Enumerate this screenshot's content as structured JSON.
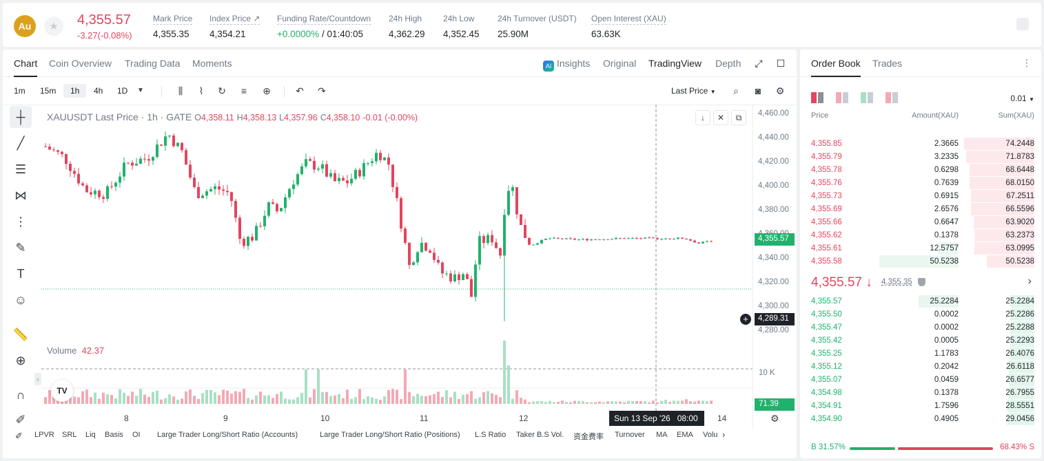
{
  "header": {
    "coin_icon": "Au",
    "last_price": "4,355.57",
    "change": "-3.27(-0.08%)",
    "stats": [
      {
        "label": "Mark Price",
        "value": "4,355.35"
      },
      {
        "label": "Index Price ↗",
        "value": "4,354.21"
      },
      {
        "label": "Funding Rate/Countdown",
        "value_green": "+0.0000%",
        "value": " / 01:40:05"
      },
      {
        "label": "24h High",
        "value": "4,362.29"
      },
      {
        "label": "24h Low",
        "value": "4,352.45"
      },
      {
        "label": "24h Turnover (USDT)",
        "value": "25.90M"
      },
      {
        "label": "Open Interest (XAU)",
        "value": "63.63K"
      }
    ]
  },
  "chart_tabs": [
    "Chart",
    "Coin Overview",
    "Trading Data",
    "Moments"
  ],
  "chart_right_tabs": {
    "insights": "Insights",
    "original": "Original",
    "tradingview": "TradingView",
    "depth": "Depth"
  },
  "timeframes": [
    "1m",
    "15m",
    "1h",
    "4h",
    "1D"
  ],
  "selected_timeframe": "1h",
  "price_type": "Last Price",
  "ohlc": {
    "symbol": "XAUUSDT Last Price · 1h · GATE",
    "o": "O",
    "o_val": "4,358.11",
    "h": "H",
    "h_val": "4,358.13",
    "l": "L",
    "l_val": "4,357.96",
    "c": "C",
    "c_val": "4,358.10",
    "chg": "-0.01 (-0.00%)"
  },
  "volume": {
    "label": "Volume",
    "value": "42.37",
    "axis_label": "10 K",
    "last": "71.39"
  },
  "price_axis": [
    "4,460.00",
    "4,440.00",
    "4,420.00",
    "4,400.00",
    "4,380.00",
    "4,360.00",
    "4,340.00",
    "4,320.00",
    "4,300.00",
    "4,280.00"
  ],
  "current_price_tag": "4,355.57",
  "crosshair_price_tag": "4,289.31",
  "time_axis": [
    "8",
    "9",
    "10",
    "11",
    "12",
    "14"
  ],
  "crosshair_time": "Sun 13 Sep '26   08:00",
  "bottom_indicators": [
    "LPVR",
    "SRL",
    "Liq",
    "Basis",
    "OI",
    "Large Trader Long/Short Ratio (Accounts)",
    "Large Trader Long/Short Ratio (Positions)",
    "L.S Ratio",
    "Taker B.S Vol.",
    "资金费率",
    "Turnover",
    "MA",
    "EMA",
    "Volu"
  ],
  "orderbook": {
    "tabs": [
      "Order Book",
      "Trades"
    ],
    "precision": "0.01",
    "headers": {
      "price": "Price",
      "amount": "Amount(XAU)",
      "sum": "Sum(XAU)"
    },
    "asks": [
      {
        "price": "4,355.85",
        "amount": "2.3665",
        "sum": "74.2448"
      },
      {
        "price": "4,355.79",
        "amount": "3.2335",
        "sum": "71.8783"
      },
      {
        "price": "4,355.78",
        "amount": "0.6298",
        "sum": "68.6448"
      },
      {
        "price": "4,355.76",
        "amount": "0.7639",
        "sum": "68.0150"
      },
      {
        "price": "4,355.73",
        "amount": "0.6915",
        "sum": "67.2511"
      },
      {
        "price": "4,355.69",
        "amount": "2.6576",
        "sum": "66.5596"
      },
      {
        "price": "4,355.66",
        "amount": "0.6647",
        "sum": "63.9020"
      },
      {
        "price": "4,355.62",
        "amount": "0.1378",
        "sum": "63.2373"
      },
      {
        "price": "4,355.61",
        "amount": "12.5757",
        "sum": "63.0995"
      },
      {
        "price": "4,355.58",
        "amount": "50.5238",
        "sum": "50.5238"
      }
    ],
    "mid_price": "4,355.57 ↓",
    "mark_price": "4,355.35",
    "bids": [
      {
        "price": "4,355.57",
        "amount": "25.2284",
        "sum": "25.2284"
      },
      {
        "price": "4,355.50",
        "amount": "0.0002",
        "sum": "25.2286"
      },
      {
        "price": "4,355.47",
        "amount": "0.0002",
        "sum": "25.2288"
      },
      {
        "price": "4,355.42",
        "amount": "0.0005",
        "sum": "25.2293"
      },
      {
        "price": "4,355.25",
        "amount": "1.1783",
        "sum": "26.4076"
      },
      {
        "price": "4,355.12",
        "amount": "0.2042",
        "sum": "26.6118"
      },
      {
        "price": "4,355.07",
        "amount": "0.0459",
        "sum": "26.6577"
      },
      {
        "price": "4,354.98",
        "amount": "0.1378",
        "sum": "26.7955"
      },
      {
        "price": "4,354.91",
        "amount": "1.7596",
        "sum": "28.5551"
      },
      {
        "price": "4,354.90",
        "amount": "0.4905",
        "sum": "29.0456"
      }
    ],
    "buy_ratio": "B 31.57%",
    "sell_ratio": "68.43% S"
  },
  "colors": {
    "up": "#20b26c",
    "down": "#e2455d",
    "up_vol": "#a8e0c4",
    "down_vol": "#f3a9b4"
  }
}
